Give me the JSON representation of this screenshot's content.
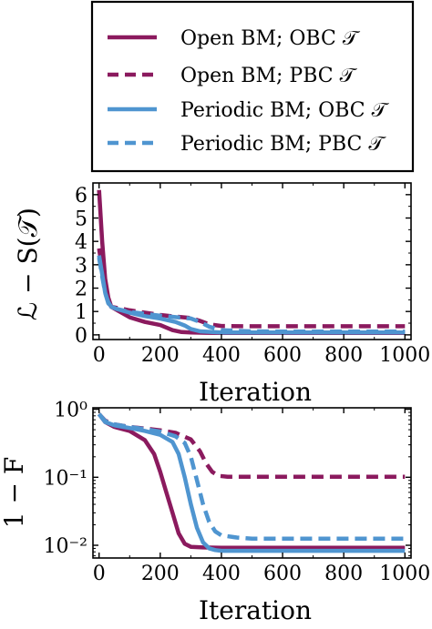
{
  "legend": {
    "entries": [
      {
        "label": "Open BM; OBC 𝒯",
        "color": "#8b1a5e",
        "style": "solid"
      },
      {
        "label": "Open BM; PBC 𝒯",
        "color": "#8b1a5e",
        "style": "dashed"
      },
      {
        "label": "Periodic BM; OBC 𝒯",
        "color": "#4f95d0",
        "style": "solid"
      },
      {
        "label": "Periodic BM; PBC 𝒯",
        "color": "#4f95d0",
        "style": "dashed"
      }
    ]
  },
  "chart_data": [
    {
      "type": "line",
      "xlabel": "Iteration",
      "ylabel": "ℒ − S(𝒯)",
      "xlim": [
        -20,
        1020
      ],
      "ylim": [
        -0.2,
        6.5
      ],
      "xticks": [
        0,
        200,
        400,
        600,
        800,
        1000
      ],
      "yticks": [
        0,
        1,
        2,
        3,
        4,
        5,
        6
      ],
      "yscale": "linear",
      "series": [
        {
          "name": "Open BM; OBC 𝒯",
          "color": "#8b1a5e",
          "style": "solid",
          "x": [
            0,
            10,
            20,
            30,
            40,
            60,
            100,
            150,
            200,
            240,
            270,
            300,
            350,
            400,
            500,
            600,
            700,
            800,
            900,
            1000
          ],
          "y": [
            6.2,
            4.0,
            2.4,
            1.6,
            1.2,
            1.05,
            0.75,
            0.55,
            0.42,
            0.2,
            0.12,
            0.1,
            0.09,
            0.08,
            0.08,
            0.08,
            0.08,
            0.08,
            0.08,
            0.08
          ]
        },
        {
          "name": "Open BM; PBC 𝒯",
          "color": "#8b1a5e",
          "style": "dashed",
          "x": [
            0,
            10,
            20,
            30,
            40,
            60,
            100,
            150,
            200,
            250,
            300,
            330,
            360,
            400,
            500,
            600,
            700,
            800,
            900,
            1000
          ],
          "y": [
            3.7,
            2.8,
            1.9,
            1.4,
            1.2,
            1.15,
            1.05,
            0.95,
            0.85,
            0.78,
            0.72,
            0.6,
            0.45,
            0.38,
            0.37,
            0.37,
            0.37,
            0.37,
            0.37,
            0.37
          ]
        },
        {
          "name": "Periodic BM; OBC 𝒯",
          "color": "#4f95d0",
          "style": "solid",
          "x": [
            0,
            10,
            20,
            30,
            40,
            60,
            100,
            150,
            200,
            250,
            280,
            300,
            330,
            400,
            500,
            600,
            700,
            800,
            900,
            1000
          ],
          "y": [
            3.4,
            2.6,
            1.8,
            1.4,
            1.2,
            1.1,
            0.95,
            0.8,
            0.7,
            0.55,
            0.4,
            0.25,
            0.15,
            0.1,
            0.1,
            0.1,
            0.1,
            0.1,
            0.1,
            0.1
          ]
        },
        {
          "name": "Periodic BM; PBC 𝒯",
          "color": "#4f95d0",
          "style": "dashed",
          "x": [
            0,
            10,
            20,
            30,
            40,
            60,
            100,
            150,
            200,
            250,
            300,
            330,
            360,
            400,
            500,
            600,
            700,
            800,
            900,
            1000
          ],
          "y": [
            3.3,
            2.5,
            1.8,
            1.35,
            1.2,
            1.1,
            0.98,
            0.9,
            0.82,
            0.76,
            0.7,
            0.55,
            0.35,
            0.2,
            0.15,
            0.14,
            0.14,
            0.14,
            0.14,
            0.14
          ]
        }
      ]
    },
    {
      "type": "line",
      "xlabel": "Iteration",
      "ylabel": "1 − F",
      "xlim": [
        -20,
        1020
      ],
      "ylim": [
        0.0065,
        1.05
      ],
      "xticks": [
        0,
        200,
        400,
        600,
        800,
        1000
      ],
      "yticks": [
        1,
        0.1,
        0.01
      ],
      "yticklabels": [
        "10⁰",
        "10⁻¹",
        "10⁻²"
      ],
      "yscale": "log",
      "series": [
        {
          "name": "Open BM; OBC 𝒯",
          "color": "#8b1a5e",
          "style": "solid",
          "x": [
            0,
            20,
            50,
            100,
            150,
            180,
            200,
            220,
            240,
            260,
            280,
            300,
            340,
            400,
            500,
            600,
            700,
            800,
            900,
            1000
          ],
          "y": [
            0.85,
            0.65,
            0.55,
            0.48,
            0.35,
            0.22,
            0.12,
            0.06,
            0.03,
            0.015,
            0.0105,
            0.0095,
            0.0093,
            0.0092,
            0.0092,
            0.0092,
            0.0092,
            0.0092,
            0.0092,
            0.0092
          ]
        },
        {
          "name": "Open BM; PBC 𝒯",
          "color": "#8b1a5e",
          "style": "dashed",
          "x": [
            0,
            20,
            50,
            100,
            150,
            200,
            250,
            300,
            330,
            350,
            370,
            390,
            420,
            450,
            500,
            600,
            700,
            800,
            900,
            1000
          ],
          "y": [
            0.85,
            0.68,
            0.6,
            0.55,
            0.52,
            0.49,
            0.45,
            0.36,
            0.24,
            0.16,
            0.12,
            0.105,
            0.102,
            0.102,
            0.102,
            0.102,
            0.102,
            0.102,
            0.102,
            0.102
          ]
        },
        {
          "name": "Periodic BM; OBC 𝒯",
          "color": "#4f95d0",
          "style": "solid",
          "x": [
            0,
            20,
            50,
            100,
            150,
            200,
            240,
            260,
            280,
            300,
            320,
            340,
            360,
            380,
            400,
            500,
            600,
            700,
            800,
            1000
          ],
          "y": [
            0.85,
            0.65,
            0.58,
            0.53,
            0.48,
            0.42,
            0.33,
            0.22,
            0.1,
            0.04,
            0.018,
            0.011,
            0.009,
            0.0085,
            0.0083,
            0.0083,
            0.0083,
            0.0083,
            0.0083,
            0.0083
          ]
        },
        {
          "name": "Periodic BM; PBC 𝒯",
          "color": "#4f95d0",
          "style": "dashed",
          "x": [
            0,
            20,
            50,
            100,
            150,
            200,
            250,
            280,
            300,
            320,
            340,
            360,
            380,
            400,
            450,
            500,
            600,
            700,
            800,
            1000
          ],
          "y": [
            0.85,
            0.67,
            0.6,
            0.55,
            0.51,
            0.47,
            0.4,
            0.32,
            0.2,
            0.09,
            0.04,
            0.022,
            0.016,
            0.014,
            0.013,
            0.0125,
            0.0125,
            0.0125,
            0.0125,
            0.0125
          ]
        }
      ]
    }
  ]
}
